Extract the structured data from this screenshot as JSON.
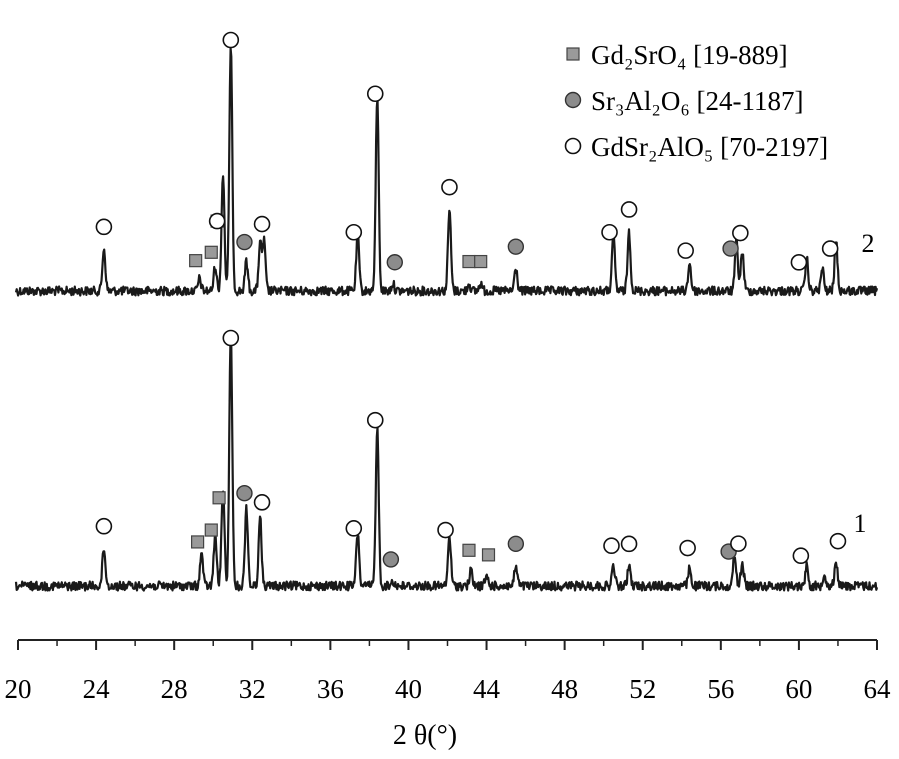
{
  "chart_data": {
    "type": "line",
    "title": "",
    "xlabel": "2 θ(°)",
    "ylabel": "",
    "xlim": [
      20,
      64
    ],
    "x_ticks": [
      "20",
      "24",
      "28",
      "32",
      "36",
      "40",
      "44",
      "48",
      "52",
      "56",
      "60",
      "64"
    ],
    "grid": false,
    "legend_position": "top-right",
    "legend": [
      {
        "key": "gd2sro4",
        "marker": "square",
        "text": "Gd₂SrO₄ [19-889]",
        "color": "#9a9a9a"
      },
      {
        "key": "sr3al2o6",
        "marker": "filled-circle",
        "text": "Sr₃Al₂O₆ [24-1187]",
        "color": "#8c8c8c"
      },
      {
        "key": "gdsr2alo5",
        "marker": "open-circle",
        "text": "GdSr₂AlO₅ [70-2197]",
        "color": "#ffffff"
      }
    ],
    "series": [
      {
        "name": "2",
        "peaks": [
          {
            "x": 24.4,
            "h": 0.17
          },
          {
            "x": 29.3,
            "h": 0.05
          },
          {
            "x": 30.1,
            "h": 0.1
          },
          {
            "x": 30.5,
            "h": 0.47
          },
          {
            "x": 30.9,
            "h": 0.98
          },
          {
            "x": 31.7,
            "h": 0.12
          },
          {
            "x": 32.4,
            "h": 0.19
          },
          {
            "x": 32.6,
            "h": 0.2
          },
          {
            "x": 37.4,
            "h": 0.22
          },
          {
            "x": 38.4,
            "h": 0.78
          },
          {
            "x": 39.2,
            "h": 0.03
          },
          {
            "x": 42.1,
            "h": 0.33
          },
          {
            "x": 43.1,
            "h": 0.03
          },
          {
            "x": 43.7,
            "h": 0.03
          },
          {
            "x": 45.5,
            "h": 0.09
          },
          {
            "x": 50.5,
            "h": 0.22
          },
          {
            "x": 51.3,
            "h": 0.24
          },
          {
            "x": 54.4,
            "h": 0.11
          },
          {
            "x": 56.8,
            "h": 0.2
          },
          {
            "x": 57.1,
            "h": 0.16
          },
          {
            "x": 60.4,
            "h": 0.13
          },
          {
            "x": 61.2,
            "h": 0.09
          },
          {
            "x": 61.9,
            "h": 0.2
          }
        ]
      },
      {
        "name": "1",
        "peaks": [
          {
            "x": 24.4,
            "h": 0.15
          },
          {
            "x": 29.4,
            "h": 0.13
          },
          {
            "x": 30.1,
            "h": 0.2
          },
          {
            "x": 30.5,
            "h": 0.39
          },
          {
            "x": 30.9,
            "h": 1.0
          },
          {
            "x": 31.7,
            "h": 0.31
          },
          {
            "x": 32.4,
            "h": 0.27
          },
          {
            "x": 37.4,
            "h": 0.21
          },
          {
            "x": 38.4,
            "h": 0.63
          },
          {
            "x": 39.2,
            "h": 0.02
          },
          {
            "x": 42.1,
            "h": 0.2
          },
          {
            "x": 43.2,
            "h": 0.06
          },
          {
            "x": 44.0,
            "h": 0.04
          },
          {
            "x": 45.5,
            "h": 0.08
          },
          {
            "x": 50.5,
            "h": 0.08
          },
          {
            "x": 51.3,
            "h": 0.08
          },
          {
            "x": 54.4,
            "h": 0.07
          },
          {
            "x": 56.7,
            "h": 0.12
          },
          {
            "x": 57.1,
            "h": 0.09
          },
          {
            "x": 60.4,
            "h": 0.08
          },
          {
            "x": 61.3,
            "h": 0.05
          },
          {
            "x": 61.9,
            "h": 0.1
          }
        ]
      }
    ],
    "phase_markers": {
      "2": [
        {
          "x": 24.4,
          "phase": "gdsr2alo5"
        },
        {
          "x": 29.1,
          "phase": "gd2sro4"
        },
        {
          "x": 29.9,
          "phase": "gd2sro4"
        },
        {
          "x": 30.2,
          "phase": "gd2sro4"
        },
        {
          "x": 30.2,
          "phase": "gdsr2alo5"
        },
        {
          "x": 30.9,
          "phase": "gdsr2alo5"
        },
        {
          "x": 31.6,
          "phase": "sr3al2o6"
        },
        {
          "x": 32.5,
          "phase": "gdsr2alo5"
        },
        {
          "x": 37.2,
          "phase": "gdsr2alo5"
        },
        {
          "x": 38.3,
          "phase": "gdsr2alo5"
        },
        {
          "x": 39.3,
          "phase": "sr3al2o6"
        },
        {
          "x": 42.1,
          "phase": "gdsr2alo5"
        },
        {
          "x": 43.1,
          "phase": "gd2sro4"
        },
        {
          "x": 43.7,
          "phase": "gd2sro4"
        },
        {
          "x": 45.5,
          "phase": "sr3al2o6"
        },
        {
          "x": 50.3,
          "phase": "gdsr2alo5"
        },
        {
          "x": 51.3,
          "phase": "gdsr2alo5"
        },
        {
          "x": 54.2,
          "phase": "gdsr2alo5"
        },
        {
          "x": 56.5,
          "phase": "sr3al2o6"
        },
        {
          "x": 57.0,
          "phase": "gdsr2alo5"
        },
        {
          "x": 60.0,
          "phase": "gdsr2alo5"
        },
        {
          "x": 61.6,
          "phase": "gdsr2alo5"
        }
      ],
      "1": [
        {
          "x": 24.4,
          "phase": "gdsr2alo5"
        },
        {
          "x": 29.2,
          "phase": "gd2sro4"
        },
        {
          "x": 29.9,
          "phase": "gd2sro4"
        },
        {
          "x": 30.3,
          "phase": "gd2sro4"
        },
        {
          "x": 30.9,
          "phase": "gdsr2alo5"
        },
        {
          "x": 31.6,
          "phase": "sr3al2o6"
        },
        {
          "x": 32.5,
          "phase": "gdsr2alo5"
        },
        {
          "x": 37.2,
          "phase": "gdsr2alo5"
        },
        {
          "x": 38.3,
          "phase": "gdsr2alo5"
        },
        {
          "x": 39.1,
          "phase": "sr3al2o6"
        },
        {
          "x": 41.9,
          "phase": "gdsr2alo5"
        },
        {
          "x": 43.1,
          "phase": "gd2sro4"
        },
        {
          "x": 44.1,
          "phase": "gd2sro4"
        },
        {
          "x": 45.5,
          "phase": "sr3al2o6"
        },
        {
          "x": 50.4,
          "phase": "gdsr2alo5"
        },
        {
          "x": 51.3,
          "phase": "gdsr2alo5"
        },
        {
          "x": 54.3,
          "phase": "gdsr2alo5"
        },
        {
          "x": 56.4,
          "phase": "sr3al2o6"
        },
        {
          "x": 56.9,
          "phase": "gdsr2alo5"
        },
        {
          "x": 60.1,
          "phase": "gdsr2alo5"
        },
        {
          "x": 62.0,
          "phase": "gdsr2alo5"
        }
      ]
    }
  }
}
